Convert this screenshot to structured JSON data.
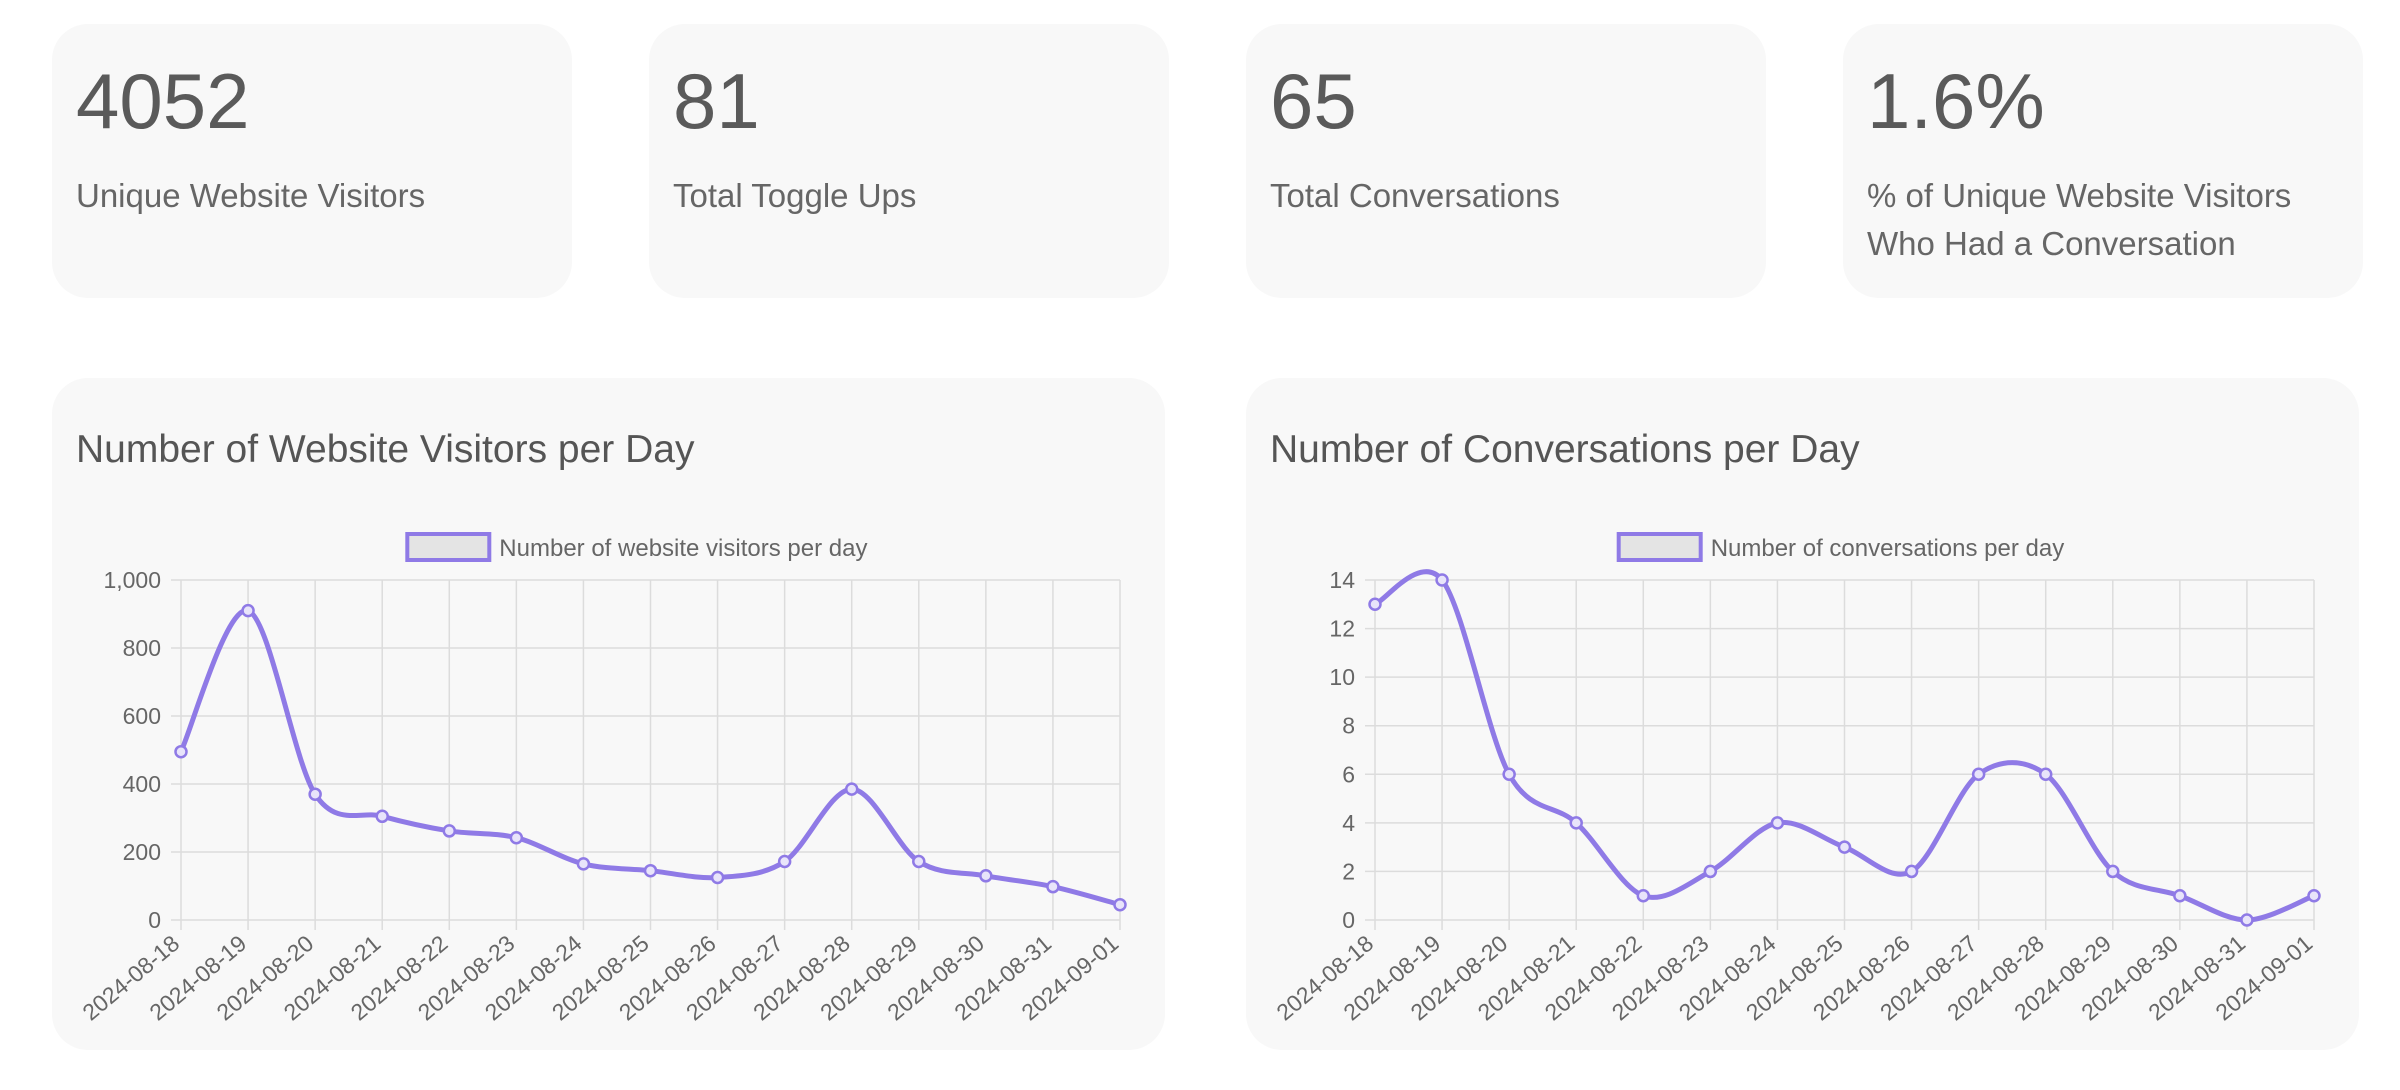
{
  "stats": [
    {
      "value": "4052",
      "label": "Unique Website Visitors"
    },
    {
      "value": "81",
      "label": "Total Toggle Ups"
    },
    {
      "value": "65",
      "label": "Total Conversations"
    },
    {
      "value": "1.6%",
      "label": "% of Unique Website Visitors Who Had a Conversation"
    }
  ],
  "colors": {
    "line": "#8f7ae6",
    "legend_fill": "#e4e4e4",
    "grid": "#dcdcdc",
    "card": "#f8f8f8"
  },
  "chart_data": [
    {
      "type": "line",
      "title": "Number of Website Visitors per Day",
      "legend": "top-center",
      "grid": true,
      "x": [
        "2024-08-18",
        "2024-08-19",
        "2024-08-20",
        "2024-08-21",
        "2024-08-22",
        "2024-08-23",
        "2024-08-24",
        "2024-08-25",
        "2024-08-26",
        "2024-08-27",
        "2024-08-28",
        "2024-08-29",
        "2024-08-30",
        "2024-08-31",
        "2024-09-01"
      ],
      "series": [
        {
          "name": "Number of website visitors per day",
          "values": [
            495,
            910,
            370,
            305,
            262,
            242,
            165,
            145,
            125,
            172,
            385,
            172,
            130,
            98,
            45
          ]
        }
      ],
      "ylim": [
        0,
        1000
      ],
      "yticks": [
        0,
        200,
        400,
        600,
        800,
        1000
      ],
      "ytick_labels": [
        "0",
        "200",
        "400",
        "600",
        "800",
        "1,000"
      ]
    },
    {
      "type": "line",
      "title": "Number of Conversations per Day",
      "legend": "top-center",
      "grid": true,
      "x": [
        "2024-08-18",
        "2024-08-19",
        "2024-08-20",
        "2024-08-21",
        "2024-08-22",
        "2024-08-23",
        "2024-08-24",
        "2024-08-25",
        "2024-08-26",
        "2024-08-27",
        "2024-08-28",
        "2024-08-29",
        "2024-08-30",
        "2024-08-31",
        "2024-09-01"
      ],
      "series": [
        {
          "name": "Number of conversations per day",
          "values": [
            13,
            14,
            6,
            4,
            1,
            2,
            4,
            3,
            2,
            6,
            6,
            2,
            1,
            0,
            1
          ]
        }
      ],
      "ylim": [
        0,
        14
      ],
      "yticks": [
        0,
        2,
        4,
        6,
        8,
        10,
        12,
        14
      ],
      "ytick_labels": [
        "0",
        "2",
        "4",
        "6",
        "8",
        "10",
        "12",
        "14"
      ]
    }
  ]
}
